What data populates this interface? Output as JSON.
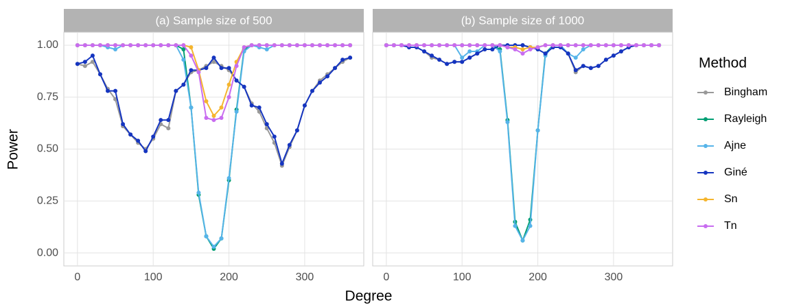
{
  "chart_data": {
    "type": "line",
    "x_label": "Degree",
    "y_label": "Power",
    "legend_title": "Method",
    "x": [
      0,
      10,
      20,
      30,
      40,
      50,
      60,
      70,
      80,
      90,
      100,
      110,
      120,
      130,
      140,
      150,
      160,
      170,
      180,
      190,
      200,
      210,
      220,
      230,
      240,
      250,
      260,
      270,
      280,
      290,
      300,
      310,
      320,
      330,
      340,
      350,
      360
    ],
    "xlim": [
      -18,
      378
    ],
    "xticks": [
      0,
      100,
      200,
      300
    ],
    "ylim": [
      -0.0625,
      1.0625
    ],
    "yticks": [
      {
        "value": 0,
        "label": "0.00"
      },
      {
        "value": 0.25,
        "label": "0.25"
      },
      {
        "value": 0.5,
        "label": "0.50"
      },
      {
        "value": 0.75,
        "label": "0.75"
      },
      {
        "value": 1,
        "label": "1.00"
      }
    ],
    "grid": true,
    "series": [
      {
        "name": "Bingham",
        "color": "#999999"
      },
      {
        "name": "Rayleigh",
        "color": "#009e73"
      },
      {
        "name": "Ajne",
        "color": "#56b4e9"
      },
      {
        "name": "Giné",
        "color": "#1535c0"
      },
      {
        "name": "Sn",
        "color": "#f5b52e"
      },
      {
        "name": "Tn",
        "color": "#c86cf0"
      }
    ],
    "panels": [
      {
        "title": "(a) Sample size of 500",
        "values": [
          [
            0.91,
            0.9,
            0.92,
            0.86,
            0.79,
            0.74,
            0.61,
            0.57,
            0.53,
            0.5,
            0.55,
            0.62,
            0.6,
            0.78,
            0.81,
            0.87,
            0.88,
            0.9,
            0.92,
            0.9,
            0.88,
            0.83,
            0.8,
            0.72,
            0.68,
            0.6,
            0.53,
            0.42,
            0.51,
            0.59,
            0.71,
            0.78,
            0.83,
            0.86,
            0.89,
            0.92,
            0.94
          ],
          [
            1,
            1,
            1,
            1,
            1,
            1,
            1,
            1,
            1,
            1,
            1,
            1,
            1,
            1,
            0.98,
            0.7,
            0.28,
            0.08,
            0.02,
            0.07,
            0.35,
            0.69,
            0.98,
            1,
            1,
            1,
            1,
            1,
            1,
            1,
            1,
            1,
            1,
            1,
            1,
            1,
            1
          ],
          [
            1,
            1,
            1,
            1,
            0.99,
            0.98,
            1,
            1,
            1,
            1,
            1,
            1,
            1,
            1,
            0.93,
            0.7,
            0.29,
            0.08,
            0.03,
            0.07,
            0.36,
            0.68,
            0.97,
            1,
            0.99,
            0.98,
            1,
            1,
            1,
            1,
            1,
            1,
            1,
            1,
            1,
            1,
            1
          ],
          [
            0.91,
            0.92,
            0.95,
            0.86,
            0.78,
            0.78,
            0.62,
            0.57,
            0.54,
            0.49,
            0.56,
            0.64,
            0.64,
            0.78,
            0.81,
            0.88,
            0.88,
            0.89,
            0.94,
            0.89,
            0.89,
            0.83,
            0.8,
            0.71,
            0.7,
            0.62,
            0.56,
            0.43,
            0.52,
            0.59,
            0.71,
            0.78,
            0.82,
            0.85,
            0.89,
            0.93,
            0.94
          ],
          [
            1,
            1,
            1,
            1,
            1,
            1,
            1,
            1,
            1,
            1,
            1,
            1,
            1,
            1,
            1,
            0.99,
            0.88,
            0.73,
            0.66,
            0.7,
            0.81,
            0.92,
            0.99,
            1,
            1,
            1,
            1,
            1,
            1,
            1,
            1,
            1,
            1,
            1,
            1,
            1,
            1
          ],
          [
            1,
            1,
            1,
            1,
            1,
            1,
            1,
            1,
            1,
            1,
            1,
            1,
            1,
            1,
            1,
            0.95,
            0.87,
            0.65,
            0.64,
            0.65,
            0.75,
            0.9,
            0.99,
            1,
            1,
            1,
            1,
            1,
            1,
            1,
            1,
            1,
            1,
            1,
            1,
            1,
            1
          ]
        ]
      },
      {
        "title": "(b) Sample size of 1000",
        "values": [
          [
            1,
            1,
            1,
            0.99,
            0.99,
            0.97,
            0.94,
            0.93,
            0.91,
            0.92,
            0.92,
            0.94,
            0.96,
            0.98,
            0.98,
            1,
            1,
            1,
            1,
            0.99,
            0.98,
            0.96,
            0.99,
            0.99,
            0.96,
            0.87,
            0.9,
            0.89,
            0.9,
            0.93,
            0.95,
            0.97,
            0.99,
            1,
            1,
            1,
            1
          ],
          [
            1,
            1,
            1,
            1,
            1,
            1,
            1,
            1,
            1,
            1,
            1,
            1,
            1,
            1,
            1,
            0.98,
            0.64,
            0.15,
            0.06,
            0.16,
            0.59,
            0.96,
            1,
            1,
            1,
            1,
            1,
            1,
            1,
            1,
            1,
            1,
            1,
            1,
            1,
            1,
            1
          ],
          [
            1,
            1,
            1,
            1,
            1,
            1,
            1,
            1,
            1,
            1,
            0.94,
            0.97,
            0.97,
            1,
            1,
            0.97,
            0.63,
            0.13,
            0.06,
            0.13,
            0.59,
            0.95,
            1,
            1,
            0.96,
            0.94,
            0.98,
            1,
            1,
            1,
            1,
            1,
            1,
            1,
            1,
            1,
            1
          ],
          [
            1,
            1,
            1,
            0.99,
            0.99,
            0.97,
            0.95,
            0.93,
            0.91,
            0.92,
            0.92,
            0.94,
            0.96,
            0.98,
            0.98,
            1,
            1,
            1,
            1,
            0.99,
            0.98,
            0.96,
            0.99,
            0.99,
            0.96,
            0.88,
            0.9,
            0.89,
            0.9,
            0.93,
            0.95,
            0.97,
            0.99,
            1,
            1,
            1,
            1
          ],
          [
            1,
            1,
            1,
            1,
            1,
            1,
            1,
            1,
            1,
            1,
            1,
            1,
            1,
            1,
            1,
            1,
            0.99,
            0.99,
            0.98,
            0.99,
            0.99,
            1,
            1,
            1,
            1,
            1,
            1,
            1,
            1,
            1,
            1,
            1,
            1,
            1,
            1,
            1,
            1
          ],
          [
            1,
            1,
            1,
            1,
            1,
            1,
            1,
            1,
            1,
            1,
            1,
            1,
            1,
            1,
            1,
            1,
            0.99,
            0.98,
            0.96,
            0.98,
            0.99,
            1,
            1,
            1,
            1,
            1,
            1,
            1,
            1,
            1,
            1,
            1,
            1,
            1,
            1,
            1,
            1
          ]
        ]
      }
    ]
  }
}
